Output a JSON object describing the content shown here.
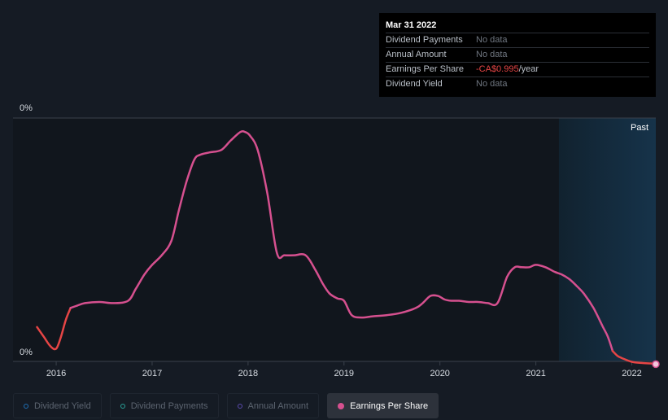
{
  "tooltip": {
    "date": "Mar 31 2022",
    "rows": [
      {
        "label": "Dividend Payments",
        "value": "No data",
        "unit": ""
      },
      {
        "label": "Annual Amount",
        "value": "No data",
        "unit": ""
      },
      {
        "label": "Earnings Per Share",
        "value": "-CA$0.995",
        "unit": "/year"
      },
      {
        "label": "Dividend Yield",
        "value": "No data",
        "unit": ""
      }
    ]
  },
  "legend": [
    {
      "label": "Dividend Yield",
      "color": "#1f6fb5",
      "active": false
    },
    {
      "label": "Dividend Payments",
      "color": "#2aa198",
      "active": false
    },
    {
      "label": "Annual Amount",
      "color": "#5b4bb0",
      "active": false
    },
    {
      "label": "Earnings Per Share",
      "color": "#d6508f",
      "active": true
    }
  ],
  "chart_data": {
    "type": "line",
    "title": "",
    "xlabel": "",
    "ylabel": "",
    "x_ticks": [
      "2016",
      "2017",
      "2018",
      "2019",
      "2020",
      "2021",
      "2022"
    ],
    "x_tick_values": [
      2016,
      2017,
      2018,
      2019,
      2020,
      2021,
      2022
    ],
    "y_ticks": [
      "0%",
      "0%"
    ],
    "ylim": [
      0,
      1
    ],
    "xlim": [
      2015.55,
      2022.25
    ],
    "past_label": "Past",
    "past_start": 2021.24,
    "highlight_x": 2022.25,
    "negative_color": "#e64545",
    "positive_color": "#d6508f",
    "series": [
      {
        "name": "Earnings Per Share",
        "color": "#d6508f",
        "x": [
          2015.8,
          2015.87,
          2015.94,
          2016.0,
          2016.05,
          2016.1,
          2016.15,
          2016.22,
          2016.3,
          2016.45,
          2016.6,
          2016.75,
          2016.83,
          2016.92,
          2017.0,
          2017.1,
          2017.2,
          2017.28,
          2017.36,
          2017.44,
          2017.5,
          2017.6,
          2017.72,
          2017.82,
          2017.92,
          2017.97,
          2018.02,
          2018.1,
          2018.2,
          2018.3,
          2018.38,
          2018.48,
          2018.6,
          2018.7,
          2018.78,
          2018.85,
          2018.93,
          2019.0,
          2019.08,
          2019.18,
          2019.3,
          2019.45,
          2019.6,
          2019.75,
          2019.82,
          2019.9,
          2019.98,
          2020.05,
          2020.12,
          2020.2,
          2020.3,
          2020.4,
          2020.5,
          2020.6,
          2020.7,
          2020.78,
          2020.85,
          2020.93,
          2021.0,
          2021.1,
          2021.2,
          2021.27,
          2021.35,
          2021.43,
          2021.5,
          2021.6,
          2021.7,
          2021.75,
          2021.8,
          2021.85,
          2021.9,
          2022.0,
          2022.1,
          2022.2,
          2022.25
        ],
        "y": [
          0.14,
          0.1,
          0.06,
          0.05,
          0.1,
          0.17,
          0.22,
          0.23,
          0.24,
          0.245,
          0.24,
          0.25,
          0.3,
          0.36,
          0.4,
          0.44,
          0.5,
          0.63,
          0.75,
          0.84,
          0.86,
          0.87,
          0.88,
          0.92,
          0.955,
          0.955,
          0.94,
          0.88,
          0.7,
          0.45,
          0.44,
          0.44,
          0.44,
          0.38,
          0.32,
          0.28,
          0.26,
          0.25,
          0.19,
          0.18,
          0.185,
          0.19,
          0.2,
          0.22,
          0.24,
          0.27,
          0.27,
          0.255,
          0.25,
          0.25,
          0.245,
          0.245,
          0.24,
          0.24,
          0.35,
          0.39,
          0.39,
          0.39,
          0.4,
          0.39,
          0.37,
          0.36,
          0.34,
          0.31,
          0.28,
          0.22,
          0.14,
          0.1,
          0.04,
          0.02,
          0.01,
          -0.005,
          -0.01,
          -0.012,
          -0.015
        ]
      }
    ]
  }
}
